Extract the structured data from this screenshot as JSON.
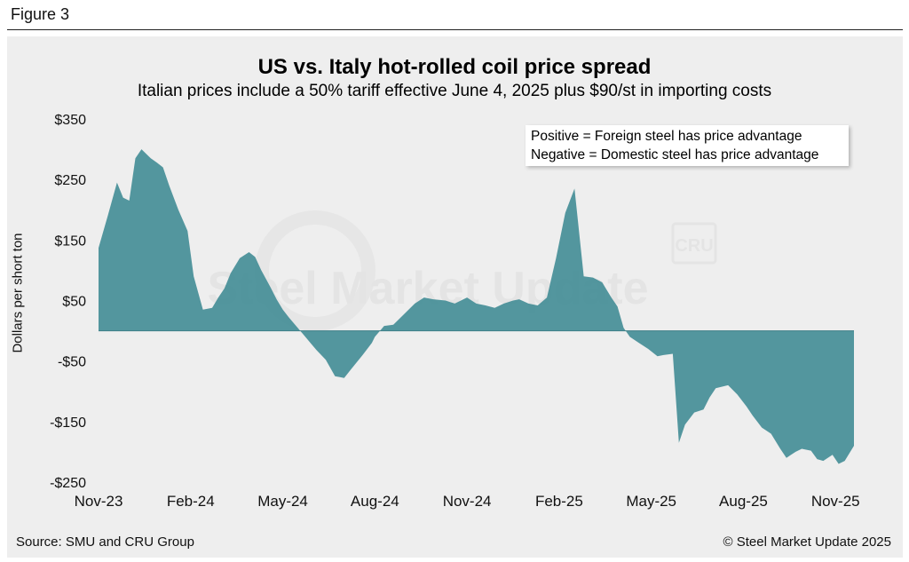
{
  "figure_label": "Figure 3",
  "source": "Source: SMU and CRU Group",
  "copyright": "© Steel Market Update 2025",
  "watermark": {
    "text": "Steel Market Update",
    "logo": "CRU"
  },
  "colors": {
    "area": "#4a9099",
    "area_dark": "#3e7f88",
    "panel": "#eeeeee"
  },
  "chart_data": {
    "type": "area",
    "title": "US vs. Italy hot-rolled coil price spread",
    "subtitle": "Italian prices include a 50% tariff effective June 4, 2025 plus $90/st in importing costs",
    "xlabel": "",
    "ylabel": "Dollars per short ton",
    "ylim": [
      -250,
      350
    ],
    "yticks": [
      350,
      250,
      150,
      50,
      -50,
      -150,
      -250
    ],
    "ytick_labels": [
      "$350",
      "$250",
      "$150",
      "$50",
      "-$50",
      "-$150",
      "-$250"
    ],
    "x_tick_labels": [
      "Nov-23",
      "Feb-24",
      "May-24",
      "Aug-24",
      "Nov-24",
      "Feb-25",
      "May-25",
      "Aug-25",
      "Nov-25"
    ],
    "x_unit": "months since Nov-23",
    "x_range": [
      0,
      24.6
    ],
    "legend": [
      "Positive = Foreign steel has price advantage",
      "Negative = Domestic steel has price advantage"
    ],
    "legend_position": "top-right",
    "series": [
      {
        "name": "US vs. Italy HRC spread",
        "x": [
          0,
          0.3,
          0.6,
          0.8,
          1.0,
          1.2,
          1.4,
          1.7,
          1.9,
          2.1,
          2.3,
          2.6,
          2.9,
          3.1,
          3.4,
          3.7,
          3.9,
          4.1,
          4.3,
          4.6,
          4.9,
          5.1,
          5.3,
          5.6,
          5.8,
          6.0,
          6.2,
          6.4,
          6.7,
          6.9,
          7.1,
          7.4,
          7.7,
          8.0,
          8.2,
          8.6,
          8.9,
          9.0,
          9.3,
          9.6,
          9.9,
          10.3,
          10.6,
          10.9,
          11.3,
          11.6,
          12.0,
          12.3,
          12.6,
          12.9,
          13.2,
          13.5,
          13.7,
          14.0,
          14.3,
          14.6,
          14.9,
          15.2,
          15.5,
          15.8,
          16.1,
          16.4,
          16.7,
          16.9,
          17.1,
          17.3,
          17.6,
          17.9,
          18.2,
          18.4,
          18.7,
          18.9,
          19.1,
          19.4,
          19.7,
          19.9,
          20.1,
          20.5,
          20.8,
          21.1,
          21.3,
          21.6,
          21.9,
          22.2,
          22.4,
          22.7,
          22.9,
          23.2,
          23.4,
          23.6,
          23.9,
          24.1,
          24.3,
          24.6
        ],
        "values": [
          137,
          190,
          245,
          220,
          215,
          285,
          300,
          285,
          278,
          270,
          240,
          200,
          165,
          90,
          35,
          38,
          55,
          70,
          95,
          120,
          130,
          122,
          100,
          72,
          52,
          35,
          22,
          10,
          -8,
          -20,
          -32,
          -48,
          -75,
          -78,
          -65,
          -40,
          -20,
          -10,
          8,
          10,
          25,
          45,
          55,
          52,
          50,
          45,
          55,
          45,
          42,
          38,
          45,
          50,
          52,
          45,
          42,
          55,
          120,
          195,
          235,
          90,
          88,
          80,
          55,
          40,
          5,
          -10,
          -20,
          -30,
          -42,
          -40,
          -38,
          -185,
          -155,
          -135,
          -130,
          -110,
          -95,
          -90,
          -105,
          -125,
          -140,
          -160,
          -170,
          -195,
          -210,
          -200,
          -195,
          -198,
          -212,
          -215,
          -205,
          -220,
          -215,
          -190
        ]
      }
    ]
  }
}
